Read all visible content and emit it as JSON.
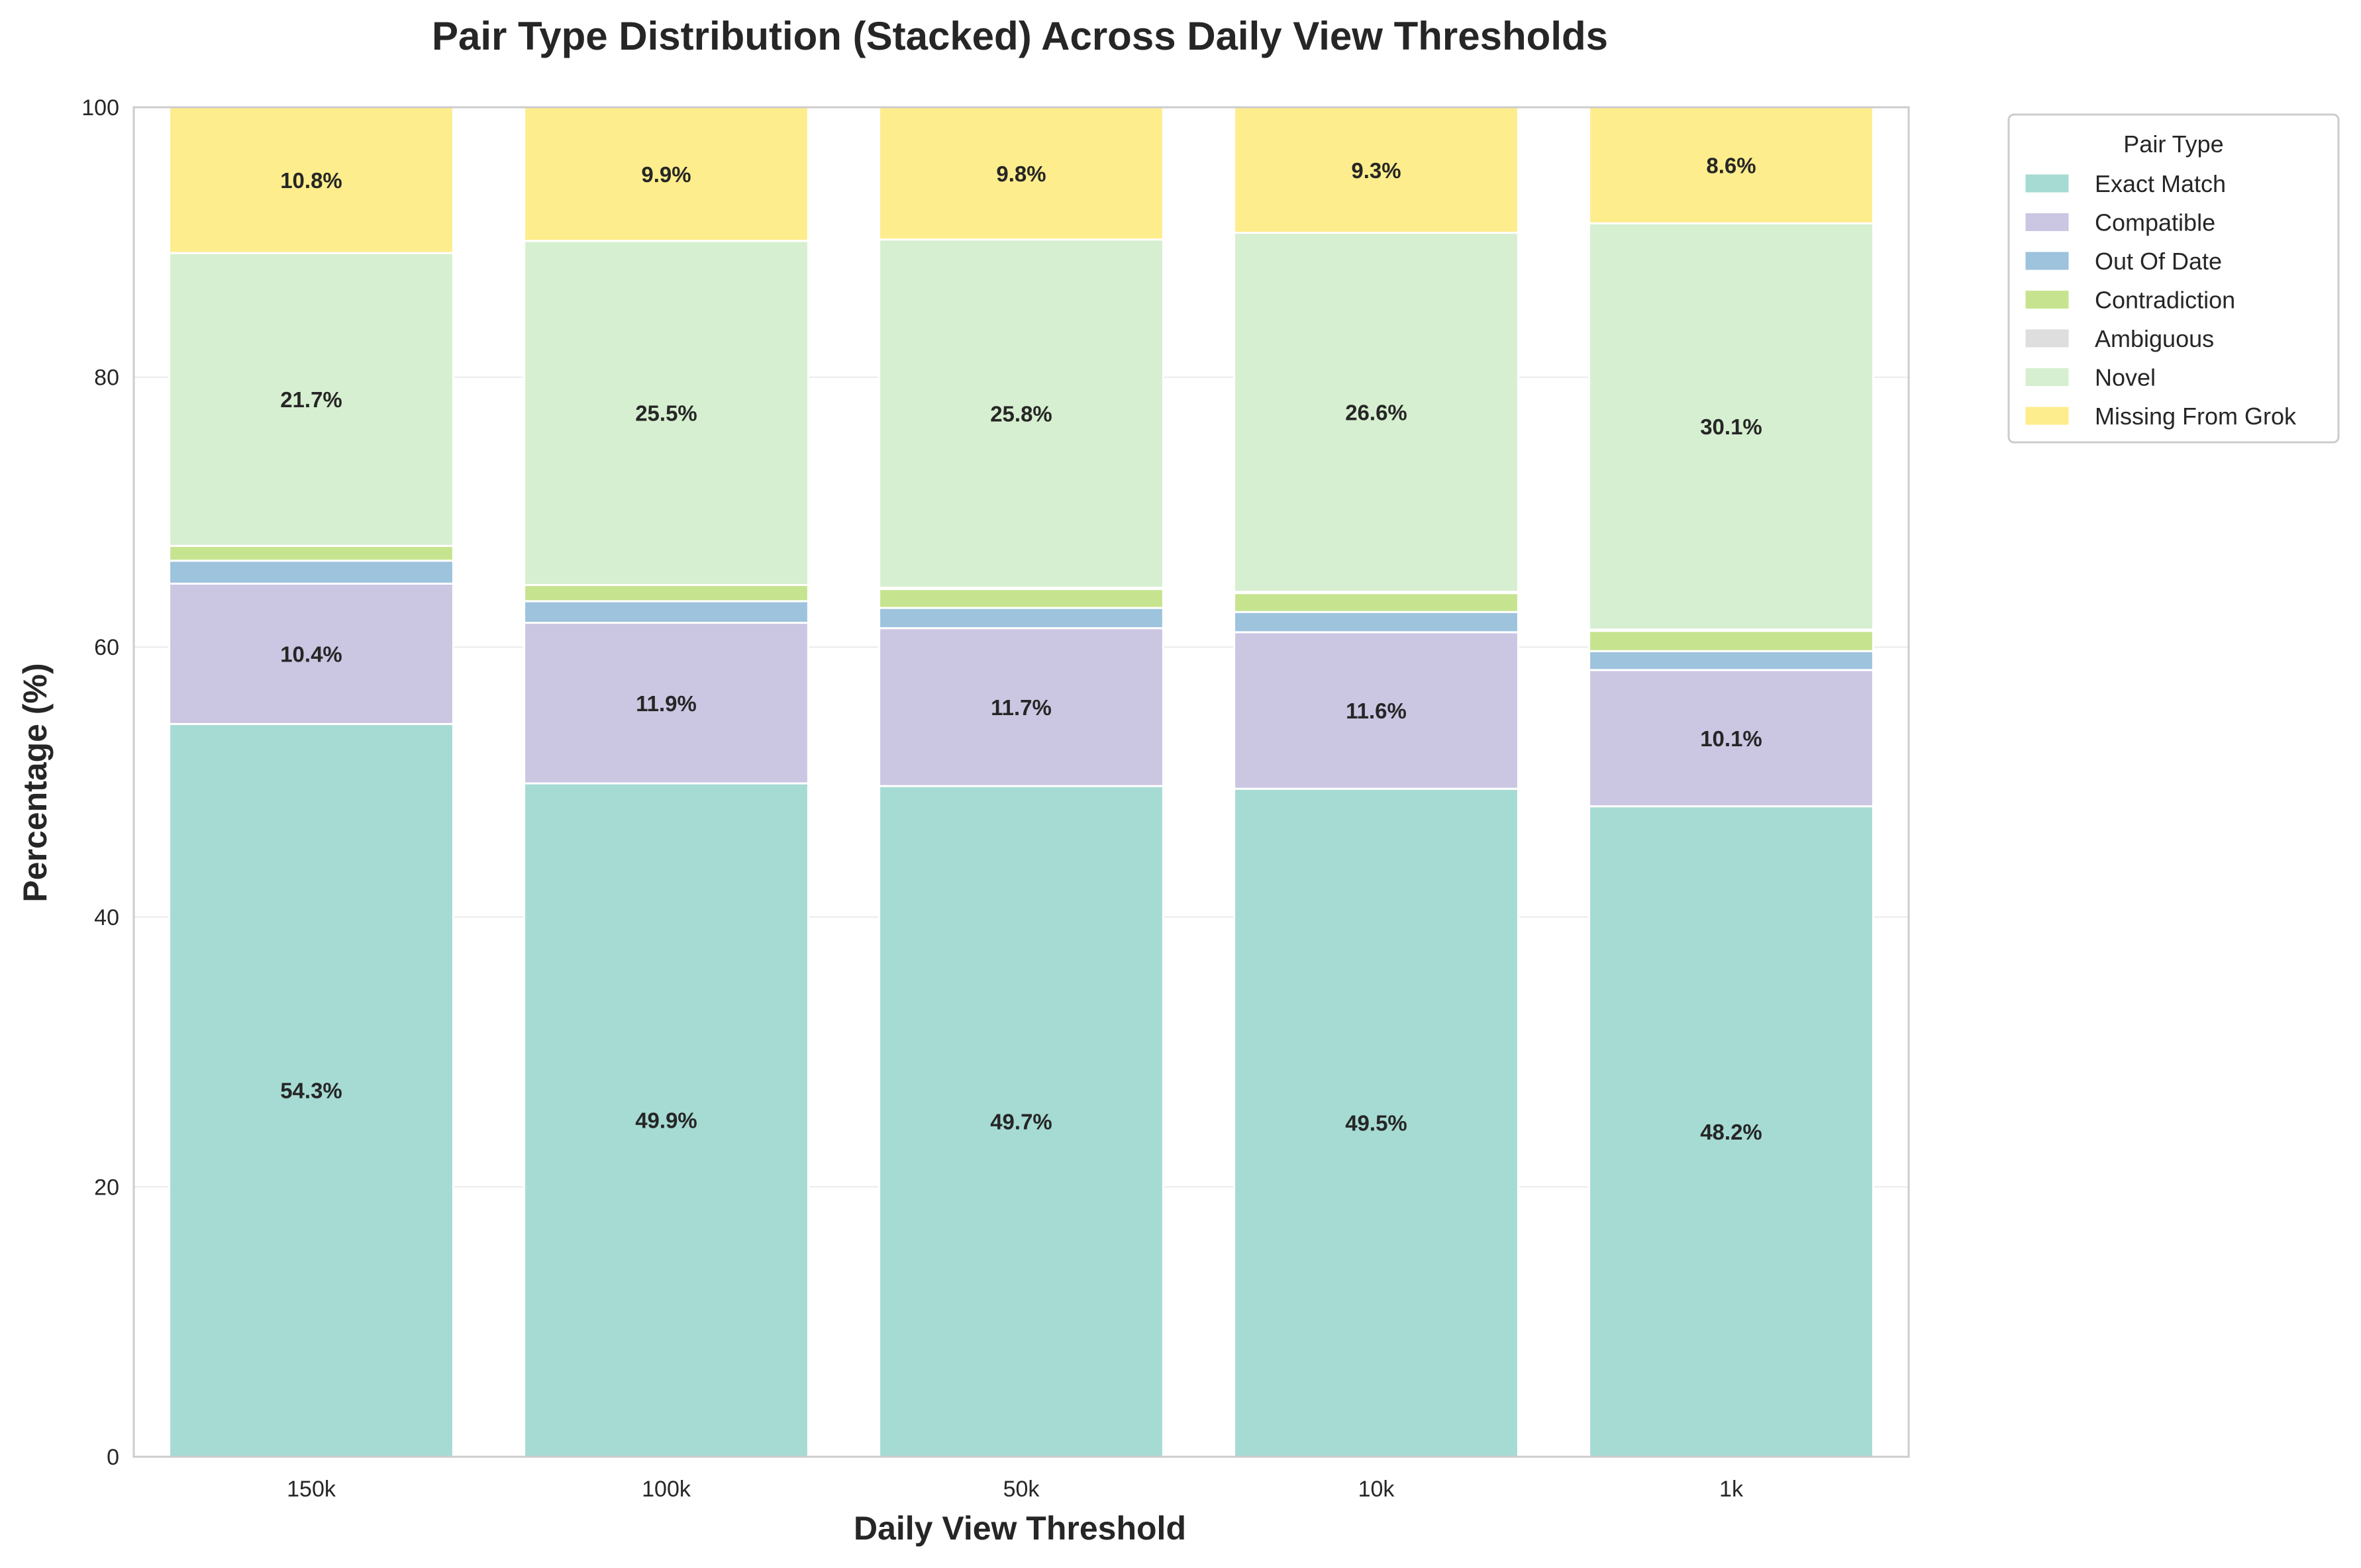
{
  "chart_data": {
    "type": "bar",
    "stacked": true,
    "title": "Pair Type Distribution (Stacked) Across Daily View Thresholds",
    "xlabel": "Daily View Threshold",
    "ylabel": "Percentage (%)",
    "ylim": [
      0,
      100
    ],
    "yticks": [
      "0",
      "20",
      "40",
      "60",
      "80",
      "100"
    ],
    "grid": true,
    "legend_title": "Pair Type",
    "legend_position": "outside-top-right",
    "categories": [
      "150k",
      "100k",
      "50k",
      "10k",
      "1k"
    ],
    "series": [
      {
        "name": "Exact Match",
        "color": "#a6dbd3",
        "values": [
          54.3,
          49.9,
          49.7,
          49.5,
          48.2
        ],
        "labels": [
          "54.3%",
          "49.9%",
          "49.7%",
          "49.5%",
          "48.2%"
        ]
      },
      {
        "name": "Compatible",
        "color": "#cbc6e2",
        "values": [
          10.4,
          11.9,
          11.7,
          11.6,
          10.1
        ],
        "labels": [
          "10.4%",
          "11.9%",
          "11.7%",
          "11.6%",
          "10.1%"
        ]
      },
      {
        "name": "Out Of Date",
        "color": "#9dc3dd",
        "values": [
          1.7,
          1.6,
          1.5,
          1.5,
          1.4
        ],
        "labels": [
          "",
          "",
          "",
          "",
          ""
        ]
      },
      {
        "name": "Contradiction",
        "color": "#c6e48f",
        "values": [
          1.1,
          1.2,
          1.4,
          1.4,
          1.5
        ],
        "labels": [
          "",
          "",
          "",
          "",
          ""
        ]
      },
      {
        "name": "Ambiguous",
        "color": "#dedede",
        "values": [
          0.0,
          0.0,
          0.1,
          0.1,
          0.1
        ],
        "labels": [
          "",
          "",
          "",
          "",
          ""
        ]
      },
      {
        "name": "Novel",
        "color": "#d6efd0",
        "values": [
          21.7,
          25.5,
          25.8,
          26.6,
          30.1
        ],
        "labels": [
          "21.7%",
          "25.5%",
          "25.8%",
          "26.6%",
          "30.1%"
        ]
      },
      {
        "name": "Missing From Grok",
        "color": "#feed8c",
        "values": [
          10.8,
          9.9,
          9.8,
          9.3,
          8.6
        ],
        "labels": [
          "10.8%",
          "9.9%",
          "9.8%",
          "9.3%",
          "8.6%"
        ]
      }
    ]
  }
}
